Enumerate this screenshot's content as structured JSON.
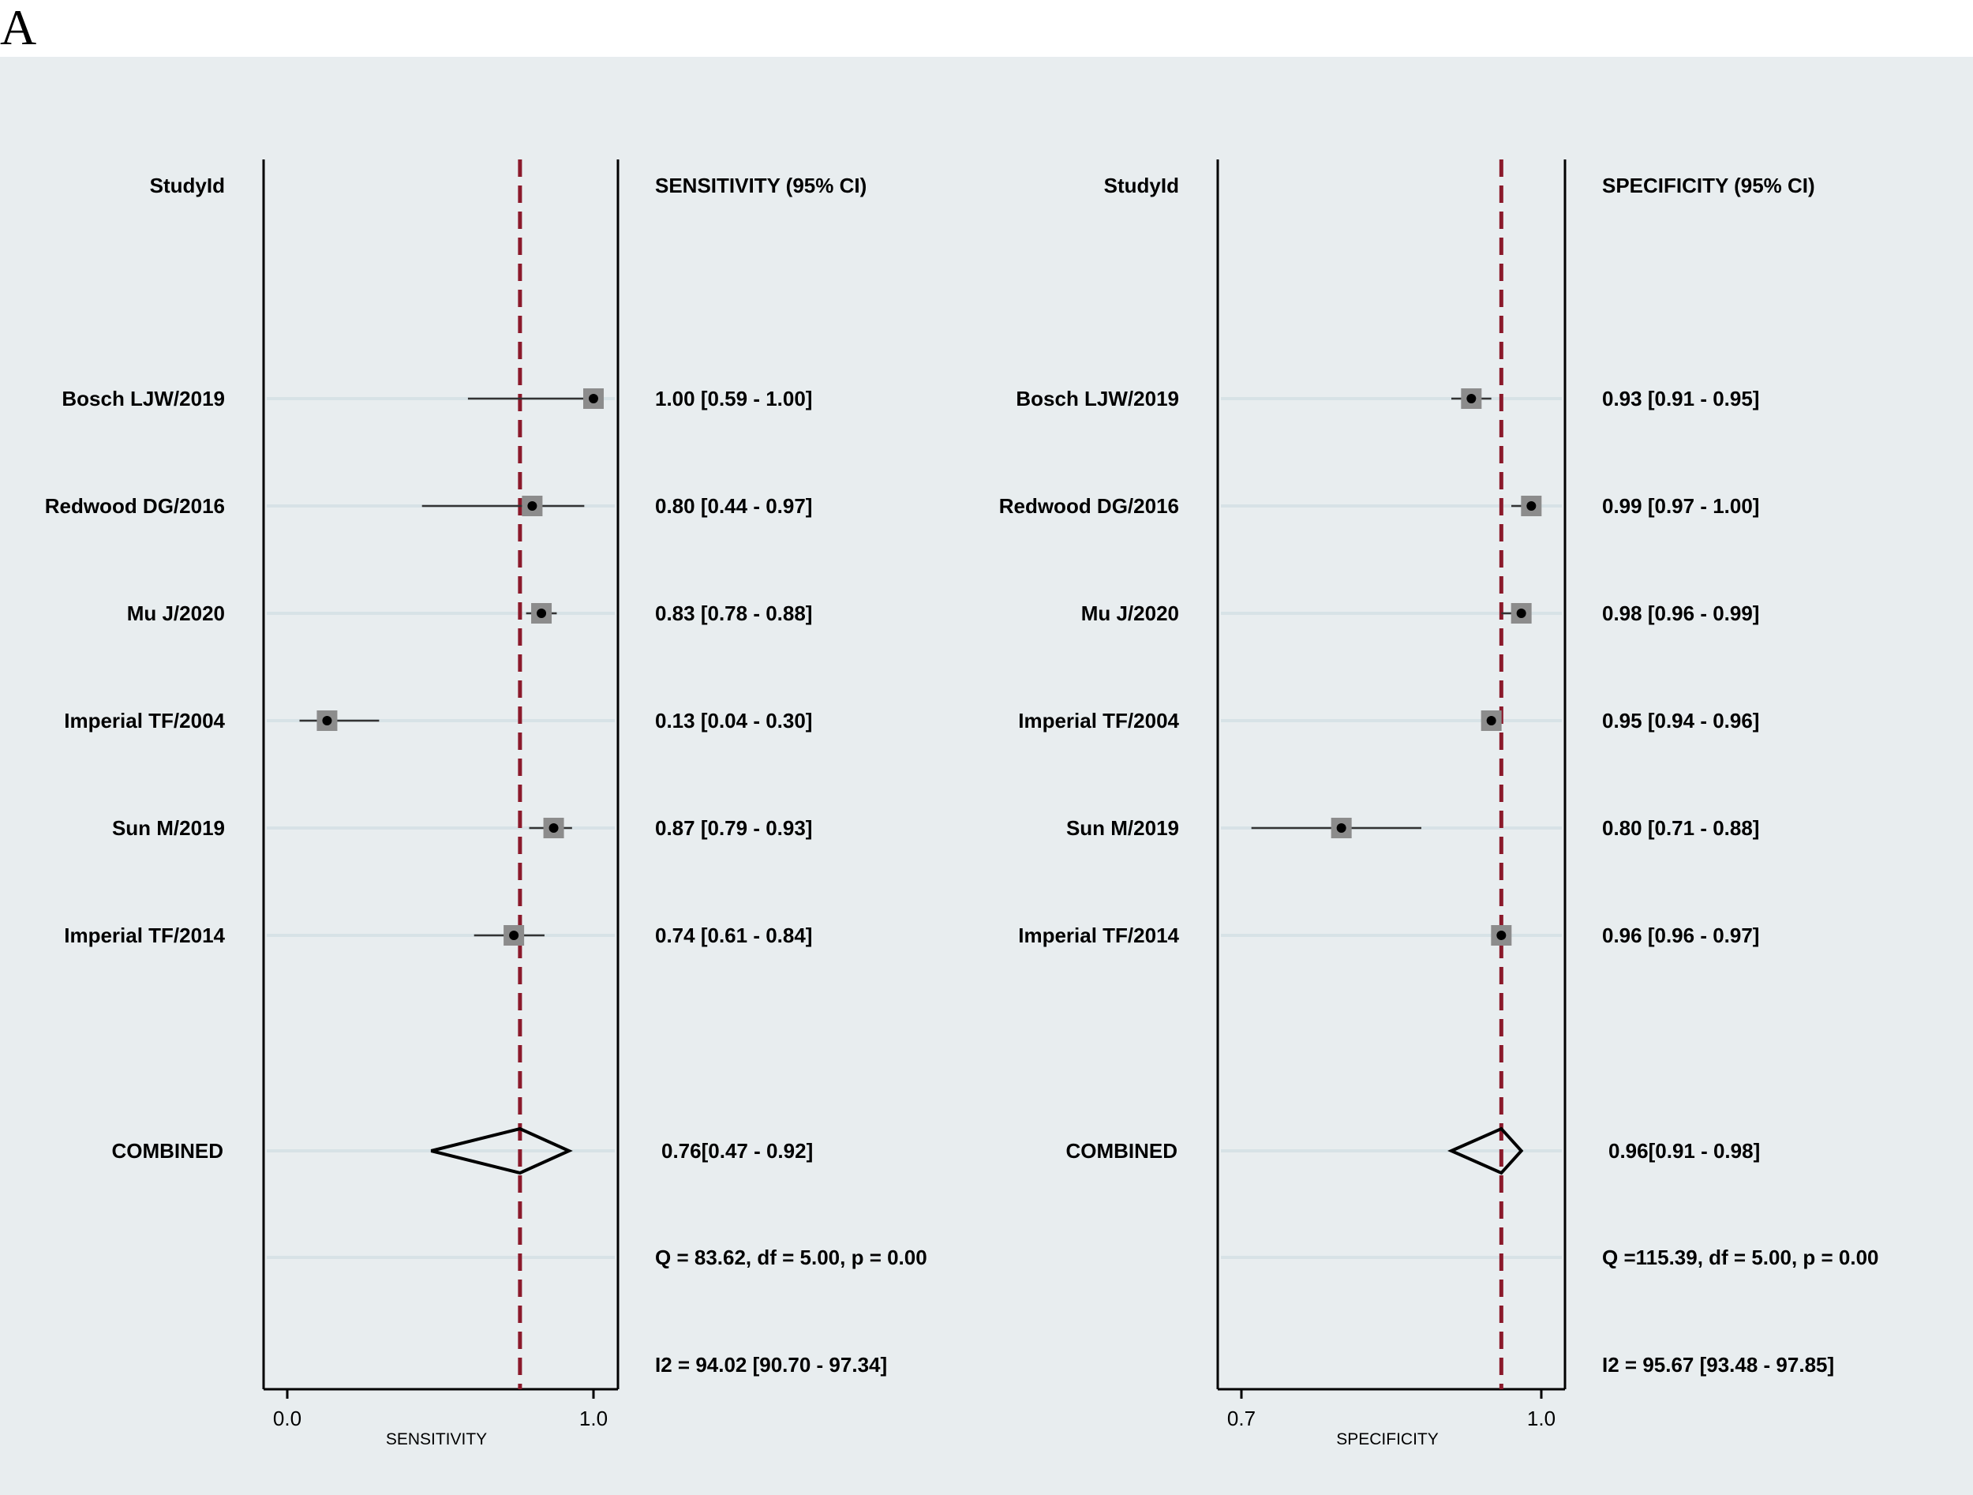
{
  "panel_label": "A",
  "chart_data": [
    {
      "type": "forest",
      "measure": "SENSITIVITY",
      "header_study": "StudyId",
      "header_estimate": "SENSITIVITY (95% CI)",
      "xlabel": "SENSITIVITY",
      "xlim": [
        0.0,
        1.0
      ],
      "xticks": [
        "0.0",
        "1.0"
      ],
      "pooled_line": 0.76,
      "colors": {
        "pooled_line": "#8b1a2b",
        "box": "#8c8c8c",
        "point": "#000000",
        "gridline": "#d7e2e6"
      },
      "studies": [
        {
          "name": "Bosch LJW/2019",
          "estimate": 1.0,
          "lower": 0.59,
          "upper": 1.0,
          "label": "1.00 [0.59 - 1.00]"
        },
        {
          "name": "Redwood DG/2016",
          "estimate": 0.8,
          "lower": 0.44,
          "upper": 0.97,
          "label": "0.80 [0.44 - 0.97]"
        },
        {
          "name": "Mu J/2020",
          "estimate": 0.83,
          "lower": 0.78,
          "upper": 0.88,
          "label": "0.83 [0.78 - 0.88]"
        },
        {
          "name": "Imperial TF/2004",
          "estimate": 0.13,
          "lower": 0.04,
          "upper": 0.3,
          "label": "0.13 [0.04 - 0.30]"
        },
        {
          "name": "Sun M/2019",
          "estimate": 0.87,
          "lower": 0.79,
          "upper": 0.93,
          "label": "0.87 [0.79 - 0.93]"
        },
        {
          "name": "Imperial TF/2014",
          "estimate": 0.74,
          "lower": 0.61,
          "upper": 0.84,
          "label": "0.74 [0.61 - 0.84]"
        }
      ],
      "combined": {
        "name": "COMBINED",
        "estimate": 0.76,
        "lower": 0.47,
        "upper": 0.92,
        "label": "0.76[0.47 - 0.92]"
      },
      "heterogeneity_q": "Q = 83.62, df = 5.00, p =  0.00",
      "heterogeneity_i2": "I2 = 94.02 [90.70 - 97.34]"
    },
    {
      "type": "forest",
      "measure": "SPECIFICITY",
      "header_study": "StudyId",
      "header_estimate": "SPECIFICITY (95% CI)",
      "xlabel": "SPECIFICITY",
      "xlim": [
        0.7,
        1.0
      ],
      "xticks": [
        "0.7",
        "1.0"
      ],
      "pooled_line": 0.96,
      "colors": {
        "pooled_line": "#8b1a2b",
        "box": "#8c8c8c",
        "point": "#000000",
        "gridline": "#d7e2e6"
      },
      "studies": [
        {
          "name": "Bosch LJW/2019",
          "estimate": 0.93,
          "lower": 0.91,
          "upper": 0.95,
          "label": "0.93 [0.91 - 0.95]"
        },
        {
          "name": "Redwood DG/2016",
          "estimate": 0.99,
          "lower": 0.97,
          "upper": 1.0,
          "label": "0.99 [0.97 - 1.00]"
        },
        {
          "name": "Mu J/2020",
          "estimate": 0.98,
          "lower": 0.96,
          "upper": 0.99,
          "label": "0.98 [0.96 - 0.99]"
        },
        {
          "name": "Imperial TF/2004",
          "estimate": 0.95,
          "lower": 0.94,
          "upper": 0.96,
          "label": "0.95 [0.94 - 0.96]"
        },
        {
          "name": "Sun M/2019",
          "estimate": 0.8,
          "lower": 0.71,
          "upper": 0.88,
          "label": "0.80 [0.71 - 0.88]"
        },
        {
          "name": "Imperial TF/2014",
          "estimate": 0.96,
          "lower": 0.96,
          "upper": 0.97,
          "label": "0.96 [0.96 - 0.97]"
        }
      ],
      "combined": {
        "name": "COMBINED",
        "estimate": 0.96,
        "lower": 0.91,
        "upper": 0.98,
        "label": "0.96[0.91 - 0.98]"
      },
      "heterogeneity_q": "Q =115.39, df = 5.00, p =  0.00",
      "heterogeneity_i2": "I2 = 95.67 [93.48 - 97.85]"
    }
  ]
}
